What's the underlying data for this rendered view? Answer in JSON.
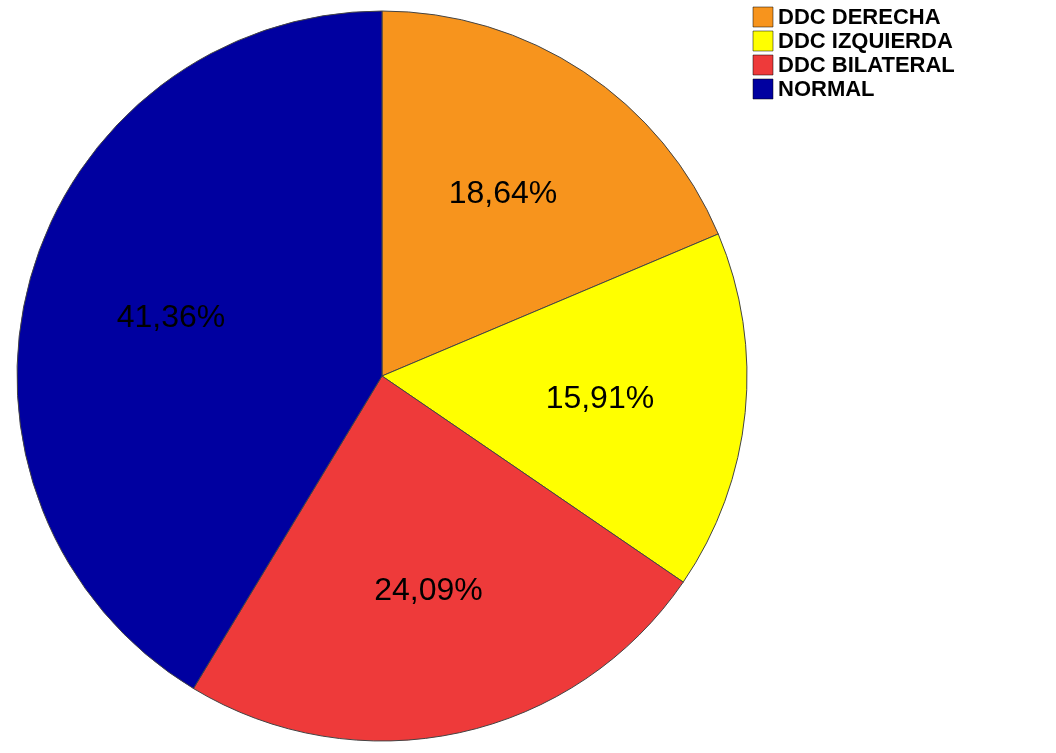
{
  "chart_data": {
    "type": "pie",
    "categories": [
      "DDC DERECHA",
      "DDC IZQUIERDA",
      "DDC BILATERAL",
      "NORMAL"
    ],
    "values": [
      18.64,
      15.91,
      24.09,
      41.36
    ],
    "colors": [
      "#f7941d",
      "#ffff00",
      "#ee3a3a",
      "#0000a0"
    ],
    "value_labels": [
      "18,64%",
      "15,91%",
      "24,09%",
      "41,36%"
    ],
    "legend": "top right"
  }
}
